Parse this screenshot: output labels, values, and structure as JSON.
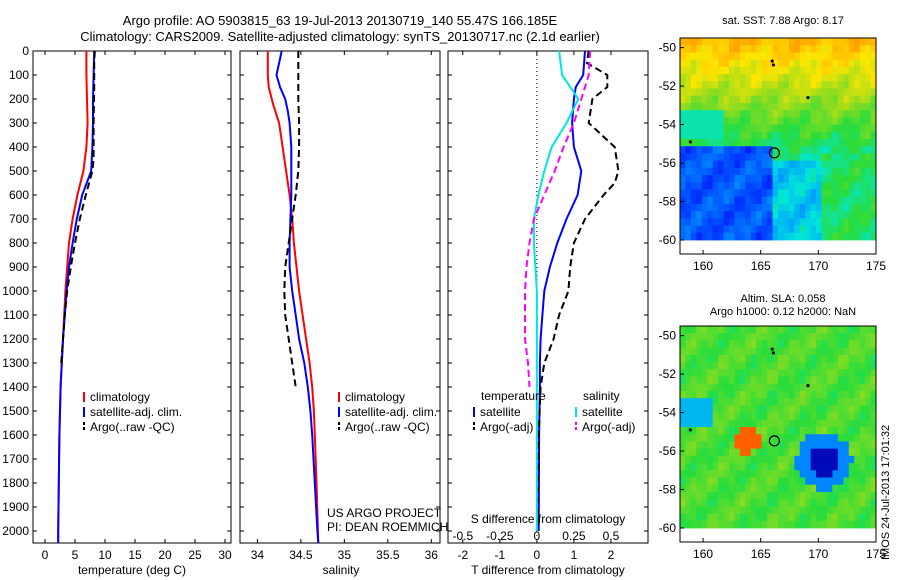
{
  "header": {
    "line1": "Argo profile: AO 5903815_63 19-Jul-2013 20130719_140 55.47S 166.185E",
    "line2": "Climatology: CARS2009. Satellite-adjusted climatology: synTS_20130717.nc (2.1d earlier)"
  },
  "colors": {
    "climatology": "#ff0000",
    "satellite": "#0000ff",
    "argo": "#000000",
    "s_satellite": "#00e5e5",
    "s_argo": "#ff00ff"
  },
  "depth_ticks": [
    "0",
    "100",
    "200",
    "300",
    "400",
    "500",
    "600",
    "700",
    "800",
    "900",
    "1000",
    "1100",
    "1200",
    "1300",
    "1400",
    "1500",
    "1600",
    "1700",
    "1800",
    "1900",
    "2000"
  ],
  "chart_data": [
    {
      "type": "line",
      "xlabel": "temperature (deg C)",
      "xticks": [
        "0",
        "5",
        "10",
        "15",
        "20",
        "25",
        "30"
      ],
      "xlim": [
        -2,
        31
      ],
      "ylim": [
        2050,
        0
      ],
      "legend": [
        "climatology",
        "satellite-adj. clim.",
        "Argo(..raw -QC)"
      ],
      "series": [
        {
          "name": "climatology",
          "style": "solid",
          "color": "#ff0000",
          "points": [
            [
              6.9,
              0
            ],
            [
              6.9,
              100
            ],
            [
              7.0,
              200
            ],
            [
              7.1,
              300
            ],
            [
              6.9,
              400
            ],
            [
              6.4,
              500
            ],
            [
              5.4,
              600
            ],
            [
              4.6,
              700
            ],
            [
              4.0,
              800
            ],
            [
              3.7,
              900
            ],
            [
              3.4,
              1000
            ],
            [
              3.2,
              1100
            ],
            [
              3.0,
              1200
            ],
            [
              2.8,
              1300
            ],
            [
              2.6,
              1400
            ],
            [
              2.5,
              1500
            ],
            [
              2.4,
              1600
            ],
            [
              2.3,
              1800
            ],
            [
              2.2,
              2000
            ],
            [
              2.2,
              2050
            ]
          ]
        },
        {
          "name": "satellite-adj. clim.",
          "style": "solid",
          "color": "#0000ff",
          "points": [
            [
              8.2,
              0
            ],
            [
              8.1,
              100
            ],
            [
              8.0,
              200
            ],
            [
              8.0,
              300
            ],
            [
              7.9,
              400
            ],
            [
              7.7,
              500
            ],
            [
              6.2,
              600
            ],
            [
              5.3,
              700
            ],
            [
              4.6,
              800
            ],
            [
              4.0,
              900
            ],
            [
              3.6,
              1000
            ],
            [
              3.3,
              1100
            ],
            [
              3.0,
              1200
            ],
            [
              2.8,
              1300
            ],
            [
              2.6,
              1400
            ],
            [
              2.5,
              1500
            ],
            [
              2.4,
              1600
            ],
            [
              2.3,
              1800
            ],
            [
              2.2,
              2000
            ],
            [
              2.2,
              2050
            ]
          ]
        },
        {
          "name": "Argo(..raw -QC)",
          "style": "dashed",
          "color": "#000000",
          "points": [
            [
              8.3,
              0
            ],
            [
              8.2,
              50
            ],
            [
              8.2,
              150
            ],
            [
              8.1,
              300
            ],
            [
              8.1,
              450
            ],
            [
              7.9,
              500
            ],
            [
              6.8,
              600
            ],
            [
              5.8,
              700
            ],
            [
              5.0,
              800
            ],
            [
              4.3,
              900
            ],
            [
              3.7,
              1000
            ],
            [
              3.3,
              1100
            ],
            [
              3.0,
              1200
            ],
            [
              2.7,
              1300
            ]
          ]
        }
      ]
    },
    {
      "type": "line",
      "xlabel": "salinity",
      "xticks": [
        "34",
        "34.5",
        "35",
        "35.5",
        "36"
      ],
      "xlim": [
        33.8,
        36.1
      ],
      "ylim": [
        2050,
        0
      ],
      "legend": [
        "climatology",
        "satellite-adj. clim.",
        "Argo(..raw -QC)"
      ],
      "series": [
        {
          "name": "climatology",
          "style": "solid",
          "color": "#ff0000",
          "points": [
            [
              34.12,
              0
            ],
            [
              34.12,
              100
            ],
            [
              34.13,
              150
            ],
            [
              34.18,
              220
            ],
            [
              34.25,
              300
            ],
            [
              34.29,
              400
            ],
            [
              34.33,
              500
            ],
            [
              34.37,
              600
            ],
            [
              34.4,
              700
            ],
            [
              34.42,
              800
            ],
            [
              34.45,
              900
            ],
            [
              34.48,
              1000
            ],
            [
              34.52,
              1100
            ],
            [
              34.56,
              1200
            ],
            [
              34.6,
              1300
            ],
            [
              34.63,
              1400
            ],
            [
              34.65,
              1500
            ],
            [
              34.66,
              1600
            ],
            [
              34.68,
              1800
            ],
            [
              34.7,
              2050
            ]
          ]
        },
        {
          "name": "satellite-adj. clim.",
          "style": "solid",
          "color": "#0000ff",
          "points": [
            [
              34.28,
              0
            ],
            [
              34.22,
              100
            ],
            [
              34.26,
              150
            ],
            [
              34.32,
              200
            ],
            [
              34.35,
              250
            ],
            [
              34.37,
              300
            ],
            [
              34.39,
              400
            ],
            [
              34.39,
              500
            ],
            [
              34.39,
              600
            ],
            [
              34.38,
              700
            ],
            [
              34.37,
              800
            ],
            [
              34.37,
              900
            ],
            [
              34.4,
              1000
            ],
            [
              34.44,
              1100
            ],
            [
              34.48,
              1200
            ],
            [
              34.54,
              1300
            ],
            [
              34.58,
              1400
            ],
            [
              34.61,
              1500
            ],
            [
              34.63,
              1600
            ],
            [
              34.66,
              1800
            ],
            [
              34.69,
              2000
            ],
            [
              34.7,
              2050
            ]
          ]
        },
        {
          "name": "Argo(..raw -QC)",
          "style": "dashed",
          "color": "#000000",
          "points": [
            [
              34.47,
              0
            ],
            [
              34.47,
              100
            ],
            [
              34.47,
              200
            ],
            [
              34.48,
              300
            ],
            [
              34.48,
              400
            ],
            [
              34.47,
              500
            ],
            [
              34.44,
              600
            ],
            [
              34.4,
              700
            ],
            [
              34.36,
              800
            ],
            [
              34.32,
              900
            ],
            [
              34.31,
              1000
            ],
            [
              34.32,
              1100
            ],
            [
              34.36,
              1200
            ],
            [
              34.4,
              1300
            ],
            [
              34.44,
              1400
            ]
          ]
        }
      ]
    },
    {
      "type": "line",
      "xlabel": "T difference from climatology",
      "xlabel_top": "S difference from climatology",
      "xticks": [
        "-2",
        "-1",
        "0",
        "1",
        "2"
      ],
      "xticks_top": [
        "-0.5",
        "-0.25",
        "0",
        "0.25",
        "0.5"
      ],
      "xlim": [
        -2.4,
        3.0
      ],
      "ylim": [
        2050,
        0
      ],
      "legend_t_title": "temperature",
      "legend_s_title": "salinity",
      "legend_t": [
        "satellite",
        "Argo(-adj)"
      ],
      "legend_s": [
        "satellite",
        "Argo(-adj)"
      ],
      "series": [
        {
          "name": "satellite",
          "variable": "temperature",
          "style": "solid",
          "color": "#0000ff",
          "points": [
            [
              1.3,
              0
            ],
            [
              1.25,
              100
            ],
            [
              1.05,
              150
            ],
            [
              1.0,
              200
            ],
            [
              0.95,
              300
            ],
            [
              1.0,
              400
            ],
            [
              1.2,
              500
            ],
            [
              1.1,
              600
            ],
            [
              0.8,
              700
            ],
            [
              0.55,
              800
            ],
            [
              0.35,
              900
            ],
            [
              0.2,
              1000
            ],
            [
              0.15,
              1100
            ],
            [
              0.1,
              1200
            ],
            [
              0.08,
              1300
            ],
            [
              0.08,
              1400
            ],
            [
              0.06,
              1600
            ],
            [
              0.05,
              2000
            ]
          ]
        },
        {
          "name": "Argo(-adj)",
          "variable": "temperature",
          "style": "dashed",
          "color": "#000000",
          "points": [
            [
              1.4,
              0
            ],
            [
              1.35,
              50
            ],
            [
              1.9,
              100
            ],
            [
              1.9,
              150
            ],
            [
              1.5,
              200
            ],
            [
              1.4,
              300
            ],
            [
              2.1,
              400
            ],
            [
              2.2,
              500
            ],
            [
              2.1,
              550
            ],
            [
              1.8,
              600
            ],
            [
              1.3,
              700
            ],
            [
              1.0,
              800
            ],
            [
              0.9,
              900
            ],
            [
              0.85,
              1000
            ],
            [
              0.6,
              1100
            ],
            [
              0.45,
              1200
            ],
            [
              0.2,
              1300
            ],
            [
              0.1,
              1400
            ],
            [
              0.05,
              1600
            ],
            [
              0.03,
              2000
            ]
          ]
        },
        {
          "name": "satellite",
          "variable": "salinity",
          "style": "solid",
          "color": "#00e5e5",
          "points": [
            [
              0.15,
              0
            ],
            [
              0.17,
              100
            ],
            [
              0.28,
              200
            ],
            [
              0.2,
              300
            ],
            [
              0.1,
              400
            ],
            [
              0.05,
              500
            ],
            [
              0.01,
              600
            ],
            [
              -0.02,
              700
            ],
            [
              -0.02,
              800
            ],
            [
              -0.01,
              900
            ],
            [
              0.0,
              1000
            ],
            [
              0.0,
              1200
            ],
            [
              0.0,
              1600
            ],
            [
              0.0,
              2000
            ]
          ]
        },
        {
          "name": "Argo(-adj)",
          "variable": "salinity",
          "style": "dashed",
          "color": "#ff00ff",
          "points": [
            [
              0.36,
              0
            ],
            [
              0.35,
              100
            ],
            [
              0.3,
              200
            ],
            [
              0.25,
              300
            ],
            [
              0.18,
              400
            ],
            [
              0.12,
              500
            ],
            [
              0.05,
              600
            ],
            [
              -0.02,
              700
            ],
            [
              -0.05,
              800
            ],
            [
              -0.07,
              900
            ],
            [
              -0.08,
              1000
            ],
            [
              -0.08,
              1100
            ],
            [
              -0.08,
              1200
            ],
            [
              -0.06,
              1300
            ],
            [
              -0.05,
              1400
            ]
          ]
        }
      ]
    },
    {
      "type": "heatmap",
      "title": "sat. SST: 7.88 Argo: 8.17",
      "xticks": [
        "160",
        "165",
        "170",
        "175"
      ],
      "yticks": [
        "-50",
        "-52",
        "-54",
        "-56",
        "-58",
        "-60"
      ],
      "xlim": [
        158,
        175
      ],
      "ylim": [
        -60,
        -49.5
      ],
      "profile_marker": [
        166.185,
        -55.47
      ],
      "field": "satellite sea surface temperature"
    },
    {
      "type": "heatmap",
      "title_line1": "Altim. SLA: 0.058",
      "title_line2": "Argo h1000: 0.12 h2000: NaN",
      "xticks": [
        "160",
        "165",
        "170",
        "175"
      ],
      "yticks": [
        "-50",
        "-52",
        "-54",
        "-56",
        "-58",
        "-60"
      ],
      "xlim": [
        158,
        175
      ],
      "ylim": [
        -60,
        -49.5
      ],
      "profile_marker": [
        166.185,
        -55.47
      ],
      "field": "altimeter sea level anomaly"
    }
  ],
  "footer": {
    "project_line1": "US ARGO PROJECT",
    "project_line2": "PI: DEAN ROEMMICH",
    "stamp": "IMOS 24-Jul-2013 17:01:32"
  }
}
